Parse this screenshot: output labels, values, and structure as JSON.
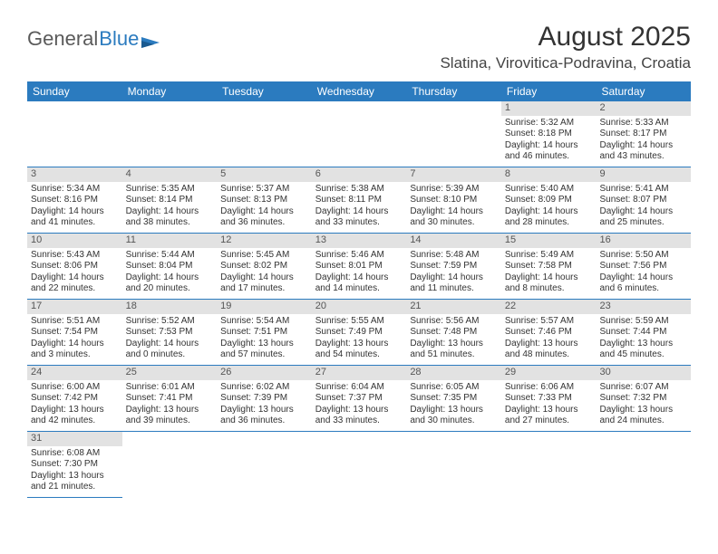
{
  "branding": {
    "logo_general": "General",
    "logo_blue": "Blue"
  },
  "header": {
    "month_title": "August 2025",
    "location": "Slatina, Virovitica-Podravina, Croatia"
  },
  "colors": {
    "header_bg": "#2b7bbf",
    "daynum_bg": "#e2e2e2",
    "text": "#333333"
  },
  "day_names": [
    "Sunday",
    "Monday",
    "Tuesday",
    "Wednesday",
    "Thursday",
    "Friday",
    "Saturday"
  ],
  "typography": {
    "month_title_fontsize": 30,
    "location_fontsize": 17,
    "dayheader_fontsize": 12,
    "cell_fontsize": 10
  },
  "weeks": [
    [
      null,
      null,
      null,
      null,
      null,
      {
        "n": "1",
        "sunrise": "Sunrise: 5:32 AM",
        "sunset": "Sunset: 8:18 PM",
        "daylight1": "Daylight: 14 hours",
        "daylight2": "and 46 minutes."
      },
      {
        "n": "2",
        "sunrise": "Sunrise: 5:33 AM",
        "sunset": "Sunset: 8:17 PM",
        "daylight1": "Daylight: 14 hours",
        "daylight2": "and 43 minutes."
      }
    ],
    [
      {
        "n": "3",
        "sunrise": "Sunrise: 5:34 AM",
        "sunset": "Sunset: 8:16 PM",
        "daylight1": "Daylight: 14 hours",
        "daylight2": "and 41 minutes."
      },
      {
        "n": "4",
        "sunrise": "Sunrise: 5:35 AM",
        "sunset": "Sunset: 8:14 PM",
        "daylight1": "Daylight: 14 hours",
        "daylight2": "and 38 minutes."
      },
      {
        "n": "5",
        "sunrise": "Sunrise: 5:37 AM",
        "sunset": "Sunset: 8:13 PM",
        "daylight1": "Daylight: 14 hours",
        "daylight2": "and 36 minutes."
      },
      {
        "n": "6",
        "sunrise": "Sunrise: 5:38 AM",
        "sunset": "Sunset: 8:11 PM",
        "daylight1": "Daylight: 14 hours",
        "daylight2": "and 33 minutes."
      },
      {
        "n": "7",
        "sunrise": "Sunrise: 5:39 AM",
        "sunset": "Sunset: 8:10 PM",
        "daylight1": "Daylight: 14 hours",
        "daylight2": "and 30 minutes."
      },
      {
        "n": "8",
        "sunrise": "Sunrise: 5:40 AM",
        "sunset": "Sunset: 8:09 PM",
        "daylight1": "Daylight: 14 hours",
        "daylight2": "and 28 minutes."
      },
      {
        "n": "9",
        "sunrise": "Sunrise: 5:41 AM",
        "sunset": "Sunset: 8:07 PM",
        "daylight1": "Daylight: 14 hours",
        "daylight2": "and 25 minutes."
      }
    ],
    [
      {
        "n": "10",
        "sunrise": "Sunrise: 5:43 AM",
        "sunset": "Sunset: 8:06 PM",
        "daylight1": "Daylight: 14 hours",
        "daylight2": "and 22 minutes."
      },
      {
        "n": "11",
        "sunrise": "Sunrise: 5:44 AM",
        "sunset": "Sunset: 8:04 PM",
        "daylight1": "Daylight: 14 hours",
        "daylight2": "and 20 minutes."
      },
      {
        "n": "12",
        "sunrise": "Sunrise: 5:45 AM",
        "sunset": "Sunset: 8:02 PM",
        "daylight1": "Daylight: 14 hours",
        "daylight2": "and 17 minutes."
      },
      {
        "n": "13",
        "sunrise": "Sunrise: 5:46 AM",
        "sunset": "Sunset: 8:01 PM",
        "daylight1": "Daylight: 14 hours",
        "daylight2": "and 14 minutes."
      },
      {
        "n": "14",
        "sunrise": "Sunrise: 5:48 AM",
        "sunset": "Sunset: 7:59 PM",
        "daylight1": "Daylight: 14 hours",
        "daylight2": "and 11 minutes."
      },
      {
        "n": "15",
        "sunrise": "Sunrise: 5:49 AM",
        "sunset": "Sunset: 7:58 PM",
        "daylight1": "Daylight: 14 hours",
        "daylight2": "and 8 minutes."
      },
      {
        "n": "16",
        "sunrise": "Sunrise: 5:50 AM",
        "sunset": "Sunset: 7:56 PM",
        "daylight1": "Daylight: 14 hours",
        "daylight2": "and 6 minutes."
      }
    ],
    [
      {
        "n": "17",
        "sunrise": "Sunrise: 5:51 AM",
        "sunset": "Sunset: 7:54 PM",
        "daylight1": "Daylight: 14 hours",
        "daylight2": "and 3 minutes."
      },
      {
        "n": "18",
        "sunrise": "Sunrise: 5:52 AM",
        "sunset": "Sunset: 7:53 PM",
        "daylight1": "Daylight: 14 hours",
        "daylight2": "and 0 minutes."
      },
      {
        "n": "19",
        "sunrise": "Sunrise: 5:54 AM",
        "sunset": "Sunset: 7:51 PM",
        "daylight1": "Daylight: 13 hours",
        "daylight2": "and 57 minutes."
      },
      {
        "n": "20",
        "sunrise": "Sunrise: 5:55 AM",
        "sunset": "Sunset: 7:49 PM",
        "daylight1": "Daylight: 13 hours",
        "daylight2": "and 54 minutes."
      },
      {
        "n": "21",
        "sunrise": "Sunrise: 5:56 AM",
        "sunset": "Sunset: 7:48 PM",
        "daylight1": "Daylight: 13 hours",
        "daylight2": "and 51 minutes."
      },
      {
        "n": "22",
        "sunrise": "Sunrise: 5:57 AM",
        "sunset": "Sunset: 7:46 PM",
        "daylight1": "Daylight: 13 hours",
        "daylight2": "and 48 minutes."
      },
      {
        "n": "23",
        "sunrise": "Sunrise: 5:59 AM",
        "sunset": "Sunset: 7:44 PM",
        "daylight1": "Daylight: 13 hours",
        "daylight2": "and 45 minutes."
      }
    ],
    [
      {
        "n": "24",
        "sunrise": "Sunrise: 6:00 AM",
        "sunset": "Sunset: 7:42 PM",
        "daylight1": "Daylight: 13 hours",
        "daylight2": "and 42 minutes."
      },
      {
        "n": "25",
        "sunrise": "Sunrise: 6:01 AM",
        "sunset": "Sunset: 7:41 PM",
        "daylight1": "Daylight: 13 hours",
        "daylight2": "and 39 minutes."
      },
      {
        "n": "26",
        "sunrise": "Sunrise: 6:02 AM",
        "sunset": "Sunset: 7:39 PM",
        "daylight1": "Daylight: 13 hours",
        "daylight2": "and 36 minutes."
      },
      {
        "n": "27",
        "sunrise": "Sunrise: 6:04 AM",
        "sunset": "Sunset: 7:37 PM",
        "daylight1": "Daylight: 13 hours",
        "daylight2": "and 33 minutes."
      },
      {
        "n": "28",
        "sunrise": "Sunrise: 6:05 AM",
        "sunset": "Sunset: 7:35 PM",
        "daylight1": "Daylight: 13 hours",
        "daylight2": "and 30 minutes."
      },
      {
        "n": "29",
        "sunrise": "Sunrise: 6:06 AM",
        "sunset": "Sunset: 7:33 PM",
        "daylight1": "Daylight: 13 hours",
        "daylight2": "and 27 minutes."
      },
      {
        "n": "30",
        "sunrise": "Sunrise: 6:07 AM",
        "sunset": "Sunset: 7:32 PM",
        "daylight1": "Daylight: 13 hours",
        "daylight2": "and 24 minutes."
      }
    ],
    [
      {
        "n": "31",
        "sunrise": "Sunrise: 6:08 AM",
        "sunset": "Sunset: 7:30 PM",
        "daylight1": "Daylight: 13 hours",
        "daylight2": "and 21 minutes."
      },
      null,
      null,
      null,
      null,
      null,
      null
    ]
  ]
}
